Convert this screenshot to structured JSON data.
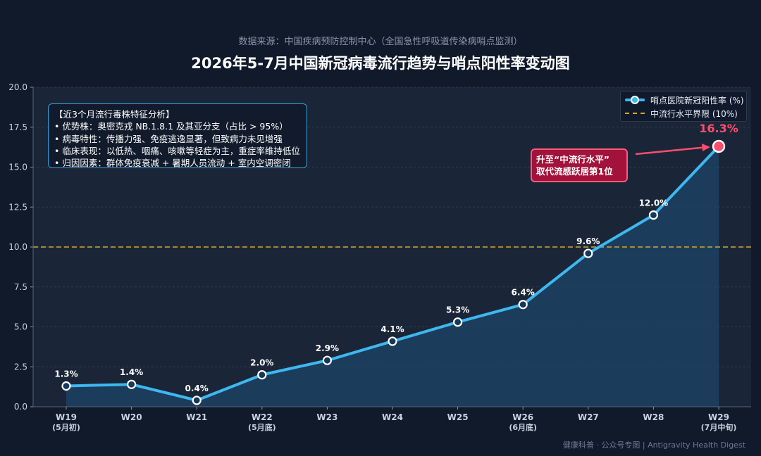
{
  "header": {
    "subtitle": "数据来源：中国疾病预防控制中心（全国急性呼吸道传染病哨点监测）",
    "title": "2026年5-7月中国新冠病毒流行趋势与哨点阳性率变动图"
  },
  "info_box": {
    "heading": "【近3个月流行毒株特征分析】",
    "lines": [
      "• 优势株：奥密克戎 NB.1.8.1 及其亚分支（占比 > 95%）",
      "• 病毒特性：传播力强、免疫逃逸显著，但致病力未见增强",
      "• 临床表现：以低热、咽痛、咳嗽等轻症为主，重症率维持低位",
      "• 归因因素：群体免疫衰减 + 暑期人员流动 + 室内空调密闭"
    ]
  },
  "legend": {
    "series_label": "哨点医院新冠阳性率 (%)",
    "threshold_label": "中流行水平界限 (10%)"
  },
  "callout": {
    "line1": "升至“中流行水平”",
    "line2": "取代流感跃居第1位"
  },
  "footer": "健康科普 · 公众号专图 | Antigravity Health Digest",
  "colors": {
    "background": "#101a2b",
    "plot_bg": "#1a2638",
    "line": "#3db8f0",
    "area": "#1e4468",
    "threshold": "#d4a72c",
    "highlight": "#ff4d6d",
    "callout_bg": "#a2123b"
  },
  "chart_data": {
    "type": "line",
    "categories": [
      "W19",
      "W20",
      "W21",
      "W22",
      "W23",
      "W24",
      "W25",
      "W26",
      "W27",
      "W28",
      "W29"
    ],
    "category_sublabels": [
      "(5月初)",
      "",
      "",
      "(5月底)",
      "",
      "",
      "",
      "(6月底)",
      "",
      "",
      "(7月中旬)"
    ],
    "series": [
      {
        "name": "哨点医院新冠阳性率 (%)",
        "values": [
          1.3,
          1.4,
          0.4,
          2.0,
          2.9,
          4.1,
          5.3,
          6.4,
          9.6,
          12.0,
          16.3
        ],
        "data_labels": [
          "1.3%",
          "1.4%",
          "0.4%",
          "2.0%",
          "2.9%",
          "4.1%",
          "5.3%",
          "6.4%",
          "9.6%",
          "12.0%",
          "16.3%"
        ]
      }
    ],
    "threshold": {
      "value": 10.0,
      "label": "中流行水平界限 (10%)"
    },
    "yticks": [
      "0.0",
      "2.5",
      "5.0",
      "7.5",
      "10.0",
      "12.5",
      "15.0",
      "17.5",
      "20.0"
    ],
    "ylim": [
      0,
      20
    ],
    "grid": true,
    "legend_position": "top-right"
  }
}
